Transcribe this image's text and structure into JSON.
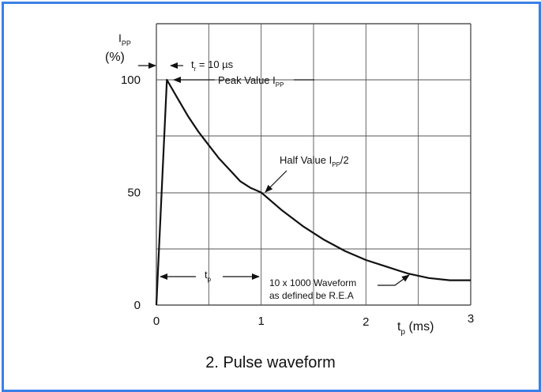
{
  "figure": {
    "caption": "2. Pulse waveform",
    "frame_color": "#3b7fe6"
  },
  "chart_data": {
    "type": "line",
    "title": "",
    "xlabel": {
      "main": "t",
      "sub": "p",
      "unit": " (ms)"
    },
    "ylabel": {
      "main": "I",
      "sub": "PP",
      "unit": "(%)"
    },
    "xlim": [
      0,
      3
    ],
    "ylim": [
      0,
      100
    ],
    "x_ticks": [
      "0",
      "1",
      "2",
      "3"
    ],
    "y_ticks": [
      "0",
      "50",
      "100"
    ],
    "grid": true,
    "series": [
      {
        "x": [
          0,
          0.1,
          0.2,
          0.3,
          0.4,
          0.5,
          0.6,
          0.7,
          0.8,
          0.9,
          1.0,
          1.2,
          1.4,
          1.6,
          1.8,
          2.0,
          2.2,
          2.4,
          2.6,
          2.8,
          3.0
        ],
        "values": [
          0,
          100,
          92,
          84,
          77,
          71,
          65,
          60,
          55,
          52,
          50,
          42,
          35,
          29,
          24,
          20,
          17,
          14,
          12,
          11,
          11
        ]
      }
    ],
    "annotations": {
      "rise_time": {
        "prefix": "t",
        "sub": "r",
        "text": " = 10 µs"
      },
      "peak": {
        "text": "Peak Value I",
        "sub": "PP"
      },
      "half": {
        "text": "Half Value I",
        "sub": "PP",
        "text2": "/2"
      },
      "tp": {
        "prefix": "t",
        "sub": "p"
      },
      "waveform": {
        "line1": "10 x 1000 Waveform",
        "line2": "as defined be R.E.A"
      }
    }
  }
}
